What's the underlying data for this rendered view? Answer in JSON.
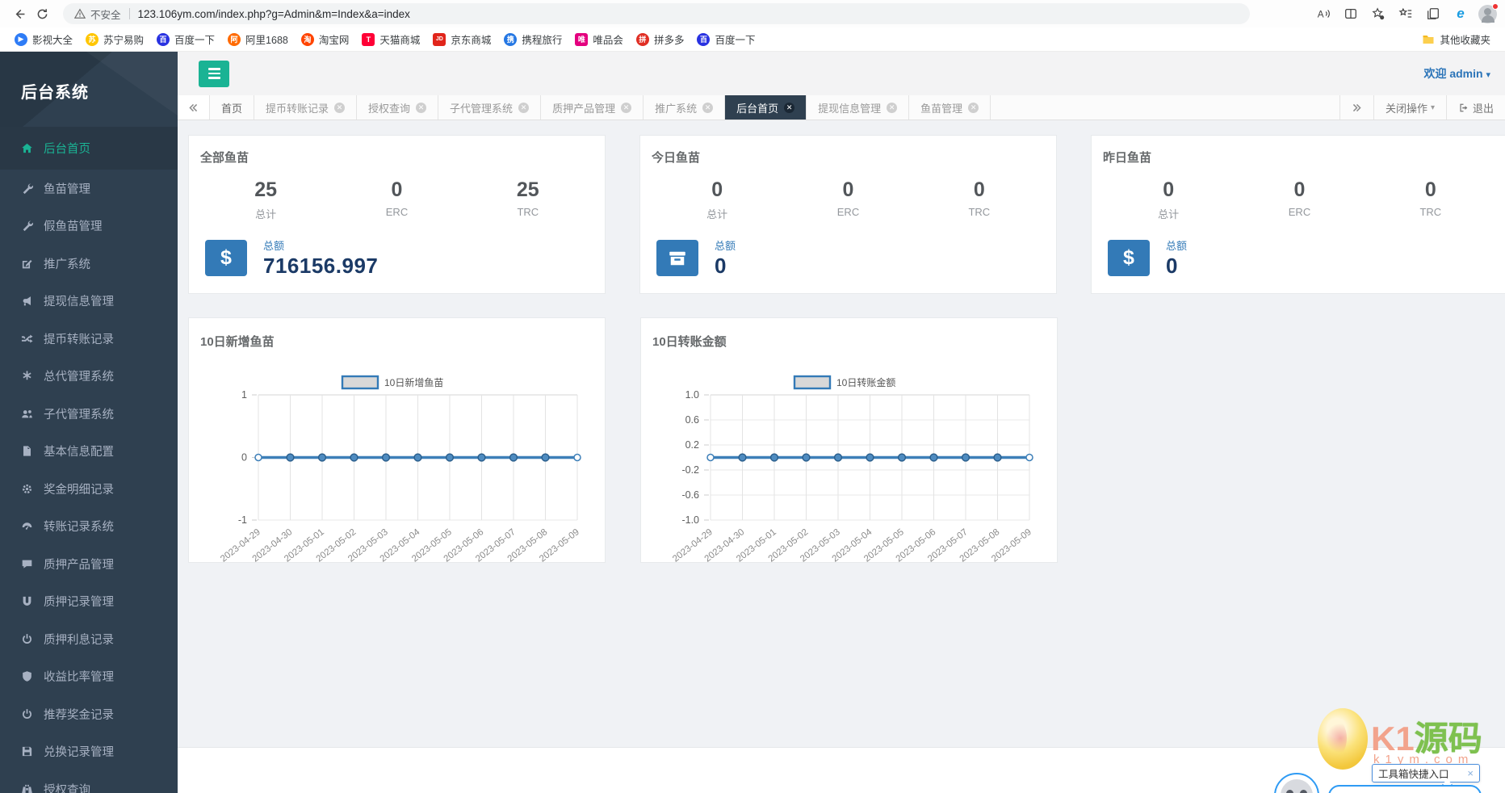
{
  "colors": {
    "sidebar": "#2f4050",
    "sidebar_active_bg": "#293846",
    "accent_green": "#1ab394",
    "accent_blue": "#337ab7",
    "total_navy": "#1b3a66",
    "chart_line": "#3d7fb8"
  },
  "browser": {
    "security_label": "不安全",
    "url": "123.106ym.com/index.php?g=Admin&m=Index&a=index",
    "other_favorites_label": "其他收藏夹",
    "bookmarks": [
      {
        "label": "影视大全",
        "color": "#2e7cf6",
        "shape": "circle",
        "glyph": "▶"
      },
      {
        "label": "苏宁易购",
        "color": "#ffc600",
        "shape": "circle",
        "glyph": "苏"
      },
      {
        "label": "百度一下",
        "color": "#2932e1",
        "shape": "circle",
        "glyph": "百"
      },
      {
        "label": "阿里1688",
        "color": "#ff6a00",
        "shape": "circle",
        "glyph": "阿"
      },
      {
        "label": "淘宝网",
        "color": "#ff4400",
        "shape": "circle",
        "glyph": "淘"
      },
      {
        "label": "天猫商城",
        "color": "#ff0036",
        "shape": "square",
        "glyph": "T"
      },
      {
        "label": "京东商城",
        "color": "#e1251b",
        "shape": "square",
        "glyph": "JD"
      },
      {
        "label": "携程旅行",
        "color": "#2577e3",
        "shape": "circle",
        "glyph": "携"
      },
      {
        "label": "唯品会",
        "color": "#e4007f",
        "shape": "square",
        "glyph": "唯"
      },
      {
        "label": "拼多多",
        "color": "#e02e24",
        "shape": "circle",
        "glyph": "拼"
      },
      {
        "label": "百度一下",
        "color": "#2932e1",
        "shape": "circle",
        "glyph": "百"
      }
    ]
  },
  "app": {
    "sidebar": {
      "title": "后台系统",
      "items": [
        {
          "label": "后台首页",
          "icon": "home",
          "active": true
        },
        {
          "label": "鱼苗管理",
          "icon": "wrench",
          "active": false
        },
        {
          "label": "假鱼苗管理",
          "icon": "wrench",
          "active": false
        },
        {
          "label": "推广系统",
          "icon": "edit",
          "active": false
        },
        {
          "label": "提现信息管理",
          "icon": "bullhorn",
          "active": false
        },
        {
          "label": "提币转账记录",
          "icon": "shuffle",
          "active": false
        },
        {
          "label": "总代管理系统",
          "icon": "asterisk",
          "active": false
        },
        {
          "label": "子代管理系统",
          "icon": "users",
          "active": false
        },
        {
          "label": "基本信息配置",
          "icon": "file",
          "active": false
        },
        {
          "label": "奖金明细记录",
          "icon": "cogs",
          "active": false
        },
        {
          "label": "转账记录系统",
          "icon": "gauge",
          "active": false
        },
        {
          "label": "质押产品管理",
          "icon": "comment",
          "active": false
        },
        {
          "label": "质押记录管理",
          "icon": "magnet",
          "active": false
        },
        {
          "label": "质押利息记录",
          "icon": "power",
          "active": false
        },
        {
          "label": "收益比率管理",
          "icon": "shield",
          "active": false
        },
        {
          "label": "推荐奖金记录",
          "icon": "power",
          "active": false
        },
        {
          "label": "兑换记录管理",
          "icon": "save",
          "active": false
        },
        {
          "label": "授权查询",
          "icon": "binoculars",
          "active": false
        }
      ]
    },
    "topbar": {
      "welcome": "欢迎",
      "user": "admin"
    },
    "tabbar": {
      "tabs": [
        {
          "label": "首页",
          "closable": false,
          "active": false
        },
        {
          "label": "提币转账记录",
          "closable": true,
          "active": false
        },
        {
          "label": "授权查询",
          "closable": true,
          "active": false
        },
        {
          "label": "子代管理系统",
          "closable": true,
          "active": false
        },
        {
          "label": "质押产品管理",
          "closable": true,
          "active": false
        },
        {
          "label": "推广系统",
          "closable": true,
          "active": false
        },
        {
          "label": "后台首页",
          "closable": true,
          "active": true
        },
        {
          "label": "提现信息管理",
          "closable": true,
          "active": false
        },
        {
          "label": "鱼苗管理",
          "closable": true,
          "active": false
        }
      ],
      "close_ops": "关闭操作",
      "logout": "退出"
    },
    "cards": [
      {
        "title": "全部鱼苗",
        "icon": "dollar",
        "total_label": "总额",
        "total_value": "716156.997",
        "stats": [
          {
            "value": "25",
            "label": "总计"
          },
          {
            "value": "0",
            "label": "ERC"
          },
          {
            "value": "25",
            "label": "TRC"
          }
        ]
      },
      {
        "title": "今日鱼苗",
        "icon": "archive",
        "total_label": "总额",
        "total_value": "0",
        "stats": [
          {
            "value": "0",
            "label": "总计"
          },
          {
            "value": "0",
            "label": "ERC"
          },
          {
            "value": "0",
            "label": "TRC"
          }
        ]
      },
      {
        "title": "昨日鱼苗",
        "icon": "dollar",
        "total_label": "总额",
        "total_value": "0",
        "stats": [
          {
            "value": "0",
            "label": "总计"
          },
          {
            "value": "0",
            "label": "ERC"
          },
          {
            "value": "0",
            "label": "TRC"
          }
        ]
      }
    ],
    "watermark": {
      "brand_k1": "K1",
      "brand_cn": "源码",
      "domain": "k1ym.com"
    },
    "tooltip": {
      "text": "工具箱快捷入口",
      "close": "×"
    }
  },
  "chart_data": [
    {
      "type": "line",
      "title": "10日新增鱼苗",
      "legend": "10日新增鱼苗",
      "x": [
        "2023-04-29",
        "2023-04-30",
        "2023-05-01",
        "2023-05-02",
        "2023-05-03",
        "2023-05-04",
        "2023-05-05",
        "2023-05-06",
        "2023-05-07",
        "2023-05-08",
        "2023-05-09"
      ],
      "values": [
        0,
        0,
        0,
        0,
        0,
        0,
        0,
        0,
        0,
        0,
        0
      ],
      "yticks": [
        1,
        0,
        -1
      ],
      "ytick_labels": [
        "1",
        "0",
        "-1"
      ],
      "ylim": [
        -1,
        1
      ],
      "grid": true,
      "legend_position": "top"
    },
    {
      "type": "line",
      "title": "10日转账金额",
      "legend": "10日转账金额",
      "x": [
        "2023-04-29",
        "2023-04-30",
        "2023-05-01",
        "2023-05-02",
        "2023-05-03",
        "2023-05-04",
        "2023-05-05",
        "2023-05-06",
        "2023-05-07",
        "2023-05-08",
        "2023-05-09"
      ],
      "values": [
        0,
        0,
        0,
        0,
        0,
        0,
        0,
        0,
        0,
        0,
        0
      ],
      "yticks": [
        1.0,
        0.6,
        0.2,
        -0.2,
        -0.6,
        -1.0
      ],
      "ytick_labels": [
        "1.0",
        "0.6",
        "0.2",
        "-0.2",
        "-0.6",
        "-1.0"
      ],
      "ylim": [
        -1,
        1
      ],
      "grid": true,
      "legend_position": "top"
    }
  ]
}
